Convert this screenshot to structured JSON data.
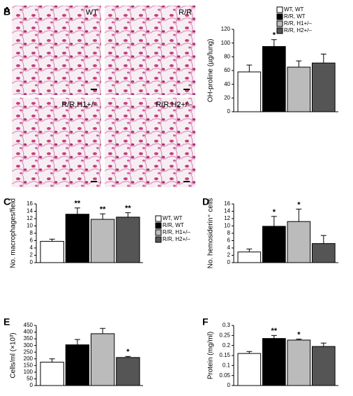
{
  "panel_a": {
    "panel": "A",
    "images": [
      {
        "label": "WT"
      },
      {
        "label": "R/R"
      },
      {
        "label": "R/R,H1+/–"
      },
      {
        "label": "R/R,H2+/–"
      }
    ]
  },
  "chart_data": [
    {
      "type": "bar",
      "panel": "B",
      "ylabel": "OH-proline (µg/lung)",
      "ylim": [
        0,
        120
      ],
      "yticks": [
        0,
        20,
        40,
        60,
        80,
        100,
        120
      ],
      "legend": "upper-right",
      "series": [
        {
          "name": "WT, WT",
          "color": "#ffffff",
          "values": [
            58
          ],
          "errors": [
            10
          ]
        },
        {
          "name": "R/R, WT",
          "color": "#000000",
          "values": [
            95
          ],
          "errors": [
            10
          ]
        },
        {
          "name": "R/R, H1+/–",
          "color": "#bbbbbb",
          "values": [
            65
          ],
          "errors": [
            9
          ]
        },
        {
          "name": "R/R, H2+/–",
          "color": "#555555",
          "values": [
            71
          ],
          "errors": [
            13
          ]
        }
      ],
      "annotations": [
        null,
        "*",
        null,
        null
      ]
    },
    {
      "type": "bar",
      "panel": "C",
      "ylabel": "No. macrophages/field",
      "ylim": [
        0,
        16
      ],
      "yticks": [
        0,
        2,
        4,
        6,
        8,
        10,
        12,
        14,
        16
      ],
      "legend": "right",
      "series": [
        {
          "name": "WT, WT",
          "color": "#ffffff",
          "values": [
            5.8
          ],
          "errors": [
            0.6
          ]
        },
        {
          "name": "R/R, WT",
          "color": "#000000",
          "values": [
            13.2
          ],
          "errors": [
            1.7
          ]
        },
        {
          "name": "R/R, H1+/–",
          "color": "#bbbbbb",
          "values": [
            11.8
          ],
          "errors": [
            1.5
          ]
        },
        {
          "name": "R/R, H2+/–",
          "color": "#555555",
          "values": [
            12.4
          ],
          "errors": [
            1.2
          ]
        }
      ],
      "annotations": [
        null,
        "**",
        "**",
        "**"
      ]
    },
    {
      "type": "bar",
      "panel": "D",
      "ylabel": "No. hemosiderin⁺ cells",
      "ylim": [
        0,
        16
      ],
      "yticks": [
        0,
        2,
        4,
        6,
        8,
        10,
        12,
        14,
        16
      ],
      "series": [
        {
          "color": "#ffffff",
          "values": [
            2.9
          ],
          "errors": [
            0.8
          ]
        },
        {
          "color": "#000000",
          "values": [
            9.9
          ],
          "errors": [
            2.7
          ]
        },
        {
          "color": "#bbbbbb",
          "values": [
            11.2
          ],
          "errors": [
            3.4
          ]
        },
        {
          "color": "#555555",
          "values": [
            5.2
          ],
          "errors": [
            2.2
          ]
        }
      ],
      "annotations": [
        null,
        "*",
        "*",
        null
      ]
    },
    {
      "type": "bar",
      "panel": "E",
      "ylabel": "Cells/ml (×10³)",
      "ylim": [
        0,
        450
      ],
      "yticks": [
        0,
        50,
        100,
        150,
        200,
        250,
        300,
        350,
        400,
        450
      ],
      "series": [
        {
          "color": "#ffffff",
          "values": [
            175
          ],
          "errors": [
            25
          ]
        },
        {
          "color": "#000000",
          "values": [
            305
          ],
          "errors": [
            40
          ]
        },
        {
          "color": "#bbbbbb",
          "values": [
            388
          ],
          "errors": [
            40
          ]
        },
        {
          "color": "#555555",
          "values": [
            210
          ],
          "errors": [
            8
          ]
        }
      ],
      "annotations": [
        null,
        null,
        null,
        "*"
      ]
    },
    {
      "type": "bar",
      "panel": "F",
      "ylabel": "Protein (mg/ml)",
      "ylim": [
        0,
        0.3
      ],
      "yticks": [
        0,
        0.05,
        0.1,
        0.15,
        0.2,
        0.25,
        0.3
      ],
      "series": [
        {
          "color": "#ffffff",
          "values": [
            0.16
          ],
          "errors": [
            0.01
          ]
        },
        {
          "color": "#000000",
          "values": [
            0.235
          ],
          "errors": [
            0.015
          ]
        },
        {
          "color": "#bbbbbb",
          "values": [
            0.227
          ],
          "errors": [
            0.005
          ]
        },
        {
          "color": "#555555",
          "values": [
            0.195
          ],
          "errors": [
            0.017
          ]
        }
      ],
      "annotations": [
        null,
        "**",
        "*",
        null
      ]
    }
  ]
}
